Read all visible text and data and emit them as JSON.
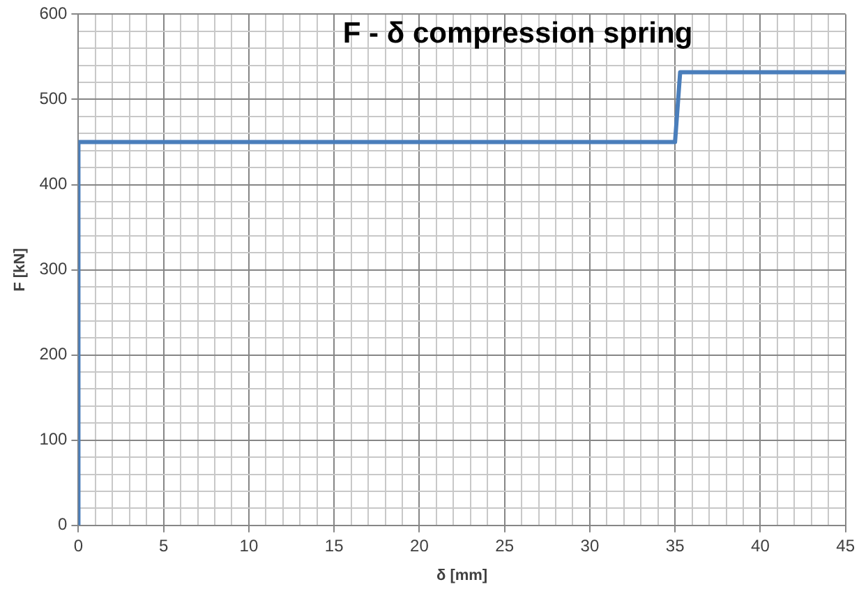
{
  "chart_data": {
    "type": "line",
    "title": "F - δ compression spring",
    "xlabel": "δ [mm]",
    "ylabel": "F [kN]",
    "x": [
      0,
      0,
      35,
      35.3,
      45
    ],
    "series": [
      {
        "color": "#4a7ebb",
        "values": [
          0,
          450,
          450,
          532,
          532
        ]
      }
    ],
    "xlim": [
      0,
      45
    ],
    "ylim": [
      0,
      600
    ],
    "xticks": [
      0,
      {
        "value": 1,
        "label": null
      },
      {
        "value": 2,
        "label": null
      },
      {
        "value": 3,
        "label": null
      },
      {
        "value": 4,
        "label": null
      },
      5,
      {
        "value": 6,
        "label": null
      },
      {
        "value": 7,
        "label": null
      },
      {
        "value": 8,
        "label": null
      },
      {
        "value": 9,
        "label": null
      },
      10,
      {
        "value": 11,
        "label": null
      },
      {
        "value": 12,
        "label": null
      },
      {
        "value": 13,
        "label": null
      },
      {
        "value": 14,
        "label": null
      },
      15,
      {
        "value": 16,
        "label": null
      },
      {
        "value": 17,
        "label": null
      },
      {
        "value": 18,
        "label": null
      },
      {
        "value": 19,
        "label": null
      },
      20,
      {
        "value": 21,
        "label": null
      },
      {
        "value": 22,
        "label": null
      },
      {
        "value": 23,
        "label": null
      },
      {
        "value": 24,
        "label": null
      },
      25,
      {
        "value": 26,
        "label": null
      },
      {
        "value": 27,
        "label": null
      },
      {
        "value": 28,
        "label": null
      },
      {
        "value": 29,
        "label": null
      },
      30,
      {
        "value": 31,
        "label": null
      },
      {
        "value": 32,
        "label": null
      },
      {
        "value": 33,
        "label": null
      },
      {
        "value": 34,
        "label": null
      },
      35,
      {
        "value": 36,
        "label": null
      },
      {
        "value": 37,
        "label": null
      },
      {
        "value": 38,
        "label": null
      },
      {
        "value": 39,
        "label": null
      },
      40,
      {
        "value": 41,
        "label": null
      },
      {
        "value": 42,
        "label": null
      },
      {
        "value": 43,
        "label": null
      },
      {
        "value": 44,
        "label": null
      },
      45
    ],
    "yticks": [
      0,
      {
        "value": 20,
        "label": null
      },
      {
        "value": 40,
        "label": null
      },
      {
        "value": 60,
        "label": null
      },
      {
        "value": 80,
        "label": null
      },
      100,
      {
        "value": 120,
        "label": null
      },
      {
        "value": 140,
        "label": null
      },
      {
        "value": 160,
        "label": null
      },
      {
        "value": 180,
        "label": null
      },
      200,
      {
        "value": 220,
        "label": null
      },
      {
        "value": 240,
        "label": null
      },
      {
        "value": 260,
        "label": null
      },
      {
        "value": 280,
        "label": null
      },
      300,
      {
        "value": 320,
        "label": null
      },
      {
        "value": 340,
        "label": null
      },
      {
        "value": 360,
        "label": null
      },
      {
        "value": 380,
        "label": null
      },
      400,
      {
        "value": 420,
        "label": null
      },
      {
        "value": 440,
        "label": null
      },
      {
        "value": 460,
        "label": null
      },
      {
        "value": 480,
        "label": null
      },
      500,
      {
        "value": 520,
        "label": null
      },
      {
        "value": 540,
        "label": null
      },
      {
        "value": 560,
        "label": null
      },
      {
        "value": 580,
        "label": null
      },
      600
    ],
    "grid": true,
    "legend": false,
    "marker": "none",
    "line_style": "solid"
  }
}
